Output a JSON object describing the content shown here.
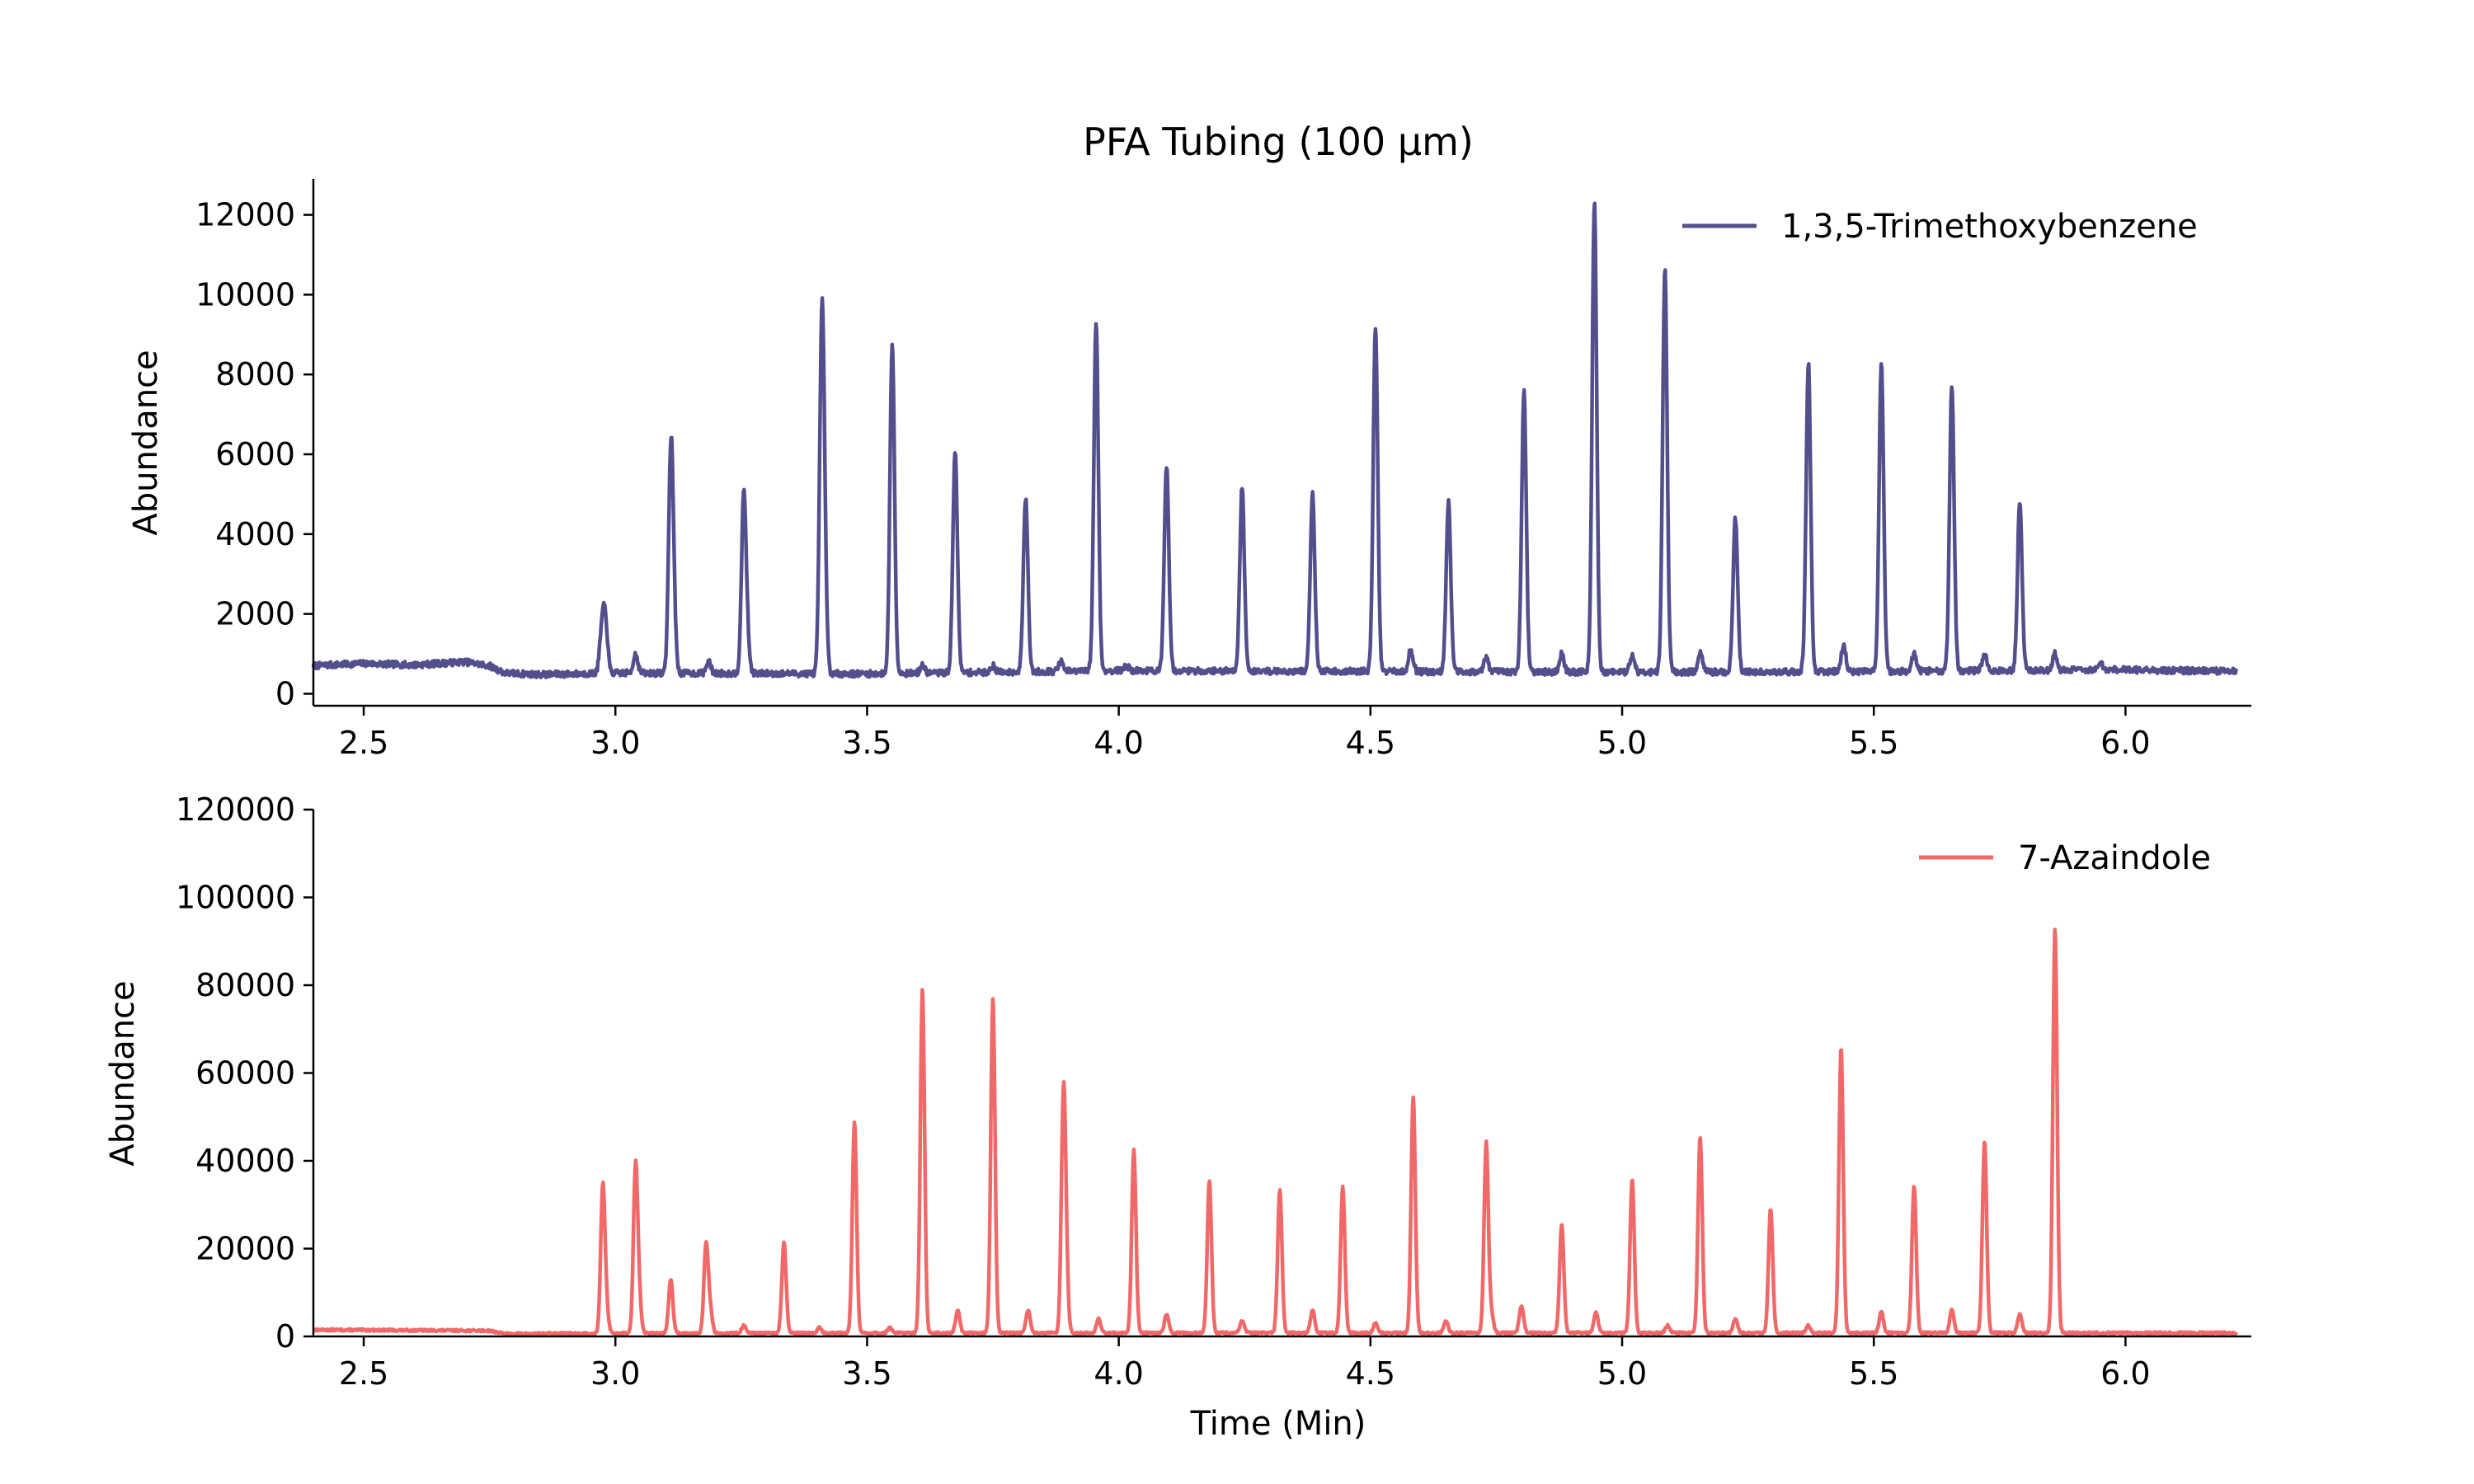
{
  "chart_data": {
    "title": "PFA Tubing (100 µm)",
    "panels": [
      {
        "type": "line",
        "xlim": [
          2.4,
          6.25
        ],
        "ylim": [
          -300,
          12900
        ],
        "xticks": [
          2.5,
          3.0,
          3.5,
          4.0,
          4.5,
          5.0,
          5.5,
          6.0
        ],
        "xtick_labels": [
          "2.5",
          "3.0",
          "3.5",
          "4.0",
          "4.5",
          "5.0",
          "5.5",
          "6.0"
        ],
        "yticks": [
          0,
          2000,
          4000,
          6000,
          8000,
          10000,
          12000
        ],
        "ytick_labels": [
          "0",
          "2000",
          "4000",
          "6000",
          "8000",
          "10000",
          "12000"
        ],
        "xlabel": "",
        "ylabel": "Abundance",
        "legend_position": "top-right",
        "series": {
          "name": "1,3,5-Trimethoxybenzene",
          "color": "#534e8c",
          "baseline": [
            [
              2.4,
              700
            ],
            [
              2.5,
              760
            ],
            [
              2.6,
              720
            ],
            [
              2.7,
              800
            ],
            [
              2.75,
              700
            ],
            [
              2.78,
              520
            ],
            [
              2.85,
              480
            ],
            [
              3.0,
              520
            ],
            [
              3.5,
              500
            ],
            [
              4.0,
              580
            ],
            [
              4.5,
              560
            ],
            [
              5.0,
              540
            ],
            [
              5.5,
              560
            ],
            [
              6.0,
              600
            ],
            [
              6.22,
              560
            ]
          ],
          "peaks": [
            [
              2.973,
              1500
            ],
            [
              2.98,
              1800
            ],
            [
              3.04,
              1000
            ],
            [
              3.11,
              5600
            ],
            [
              3.115,
              2000
            ],
            [
              3.185,
              800
            ],
            [
              3.255,
              4900
            ],
            [
              3.262,
              1200
            ],
            [
              3.41,
              8500
            ],
            [
              3.415,
              2800
            ],
            [
              3.55,
              8800
            ],
            [
              3.61,
              700
            ],
            [
              3.675,
              6100
            ],
            [
              3.75,
              700
            ],
            [
              3.815,
              4900
            ],
            [
              3.885,
              800
            ],
            [
              3.955,
              9300
            ],
            [
              4.015,
              700
            ],
            [
              4.095,
              5700
            ],
            [
              4.245,
              5200
            ],
            [
              4.385,
              5000
            ],
            [
              4.51,
              9200
            ],
            [
              4.58,
              1100
            ],
            [
              4.655,
              4800
            ],
            [
              4.73,
              900
            ],
            [
              4.805,
              7600
            ],
            [
              4.88,
              1000
            ],
            [
              4.945,
              12300
            ],
            [
              5.02,
              1000
            ],
            [
              5.085,
              10600
            ],
            [
              5.155,
              1000
            ],
            [
              5.225,
              4400
            ],
            [
              5.37,
              8300
            ],
            [
              5.44,
              1200
            ],
            [
              5.515,
              8300
            ],
            [
              5.58,
              1000
            ],
            [
              5.655,
              7700
            ],
            [
              5.72,
              1000
            ],
            [
              5.79,
              4800
            ],
            [
              5.86,
              1000
            ],
            [
              5.95,
              800
            ]
          ]
        }
      },
      {
        "type": "line",
        "xlim": [
          2.4,
          6.25
        ],
        "ylim": [
          0,
          120000
        ],
        "xticks": [
          2.5,
          3.0,
          3.5,
          4.0,
          4.5,
          5.0,
          5.5,
          6.0
        ],
        "xtick_labels": [
          "2.5",
          "3.0",
          "3.5",
          "4.0",
          "4.5",
          "5.0",
          "5.5",
          "6.0"
        ],
        "yticks": [
          0,
          20000,
          40000,
          60000,
          80000,
          100000,
          120000
        ],
        "ytick_labels": [
          "0",
          "20000",
          "40000",
          "60000",
          "80000",
          "100000",
          "120000"
        ],
        "xlabel": "Time (Min)",
        "ylabel": "Abundance",
        "legend_position": "top-right",
        "series": {
          "name": "7-Azaindole",
          "color": "#f06868",
          "baseline": [
            [
              2.4,
              1500
            ],
            [
              2.75,
              1300
            ],
            [
              2.78,
              600
            ],
            [
              3.0,
              700
            ],
            [
              4.0,
              800
            ],
            [
              5.0,
              800
            ],
            [
              6.0,
              800
            ],
            [
              6.22,
              800
            ]
          ],
          "peaks": [
            [
              2.975,
              33500
            ],
            [
              2.982,
              6000
            ],
            [
              3.04,
              38000
            ],
            [
              3.047,
              8000
            ],
            [
              3.11,
              13000
            ],
            [
              3.18,
              20500
            ],
            [
              3.188,
              6000
            ],
            [
              3.255,
              2500
            ],
            [
              3.335,
              21500
            ],
            [
              3.405,
              2000
            ],
            [
              3.475,
              49000
            ],
            [
              3.545,
              2000
            ],
            [
              3.61,
              79000
            ],
            [
              3.68,
              6000
            ],
            [
              3.75,
              77000
            ],
            [
              3.82,
              6000
            ],
            [
              3.89,
              51000
            ],
            [
              3.895,
              14000
            ],
            [
              3.96,
              4000
            ],
            [
              4.03,
              42500
            ],
            [
              4.095,
              5000
            ],
            [
              4.18,
              35500
            ],
            [
              4.245,
              3500
            ],
            [
              4.32,
              33500
            ],
            [
              4.385,
              6000
            ],
            [
              4.445,
              34000
            ],
            [
              4.51,
              3000
            ],
            [
              4.585,
              54500
            ],
            [
              4.65,
              3500
            ],
            [
              4.73,
              44000
            ],
            [
              4.74,
              5000
            ],
            [
              4.8,
              7000
            ],
            [
              4.88,
              25500
            ],
            [
              4.948,
              5500
            ],
            [
              5.02,
              36000
            ],
            [
              5.09,
              2500
            ],
            [
              5.155,
              45500
            ],
            [
              5.225,
              4000
            ],
            [
              5.295,
              29000
            ],
            [
              5.37,
              2500
            ],
            [
              5.435,
              66000
            ],
            [
              5.515,
              5500
            ],
            [
              5.58,
              34500
            ],
            [
              5.655,
              6000
            ],
            [
              5.72,
              44500
            ],
            [
              5.79,
              5000
            ],
            [
              5.86,
              93000
            ]
          ]
        }
      }
    ]
  }
}
